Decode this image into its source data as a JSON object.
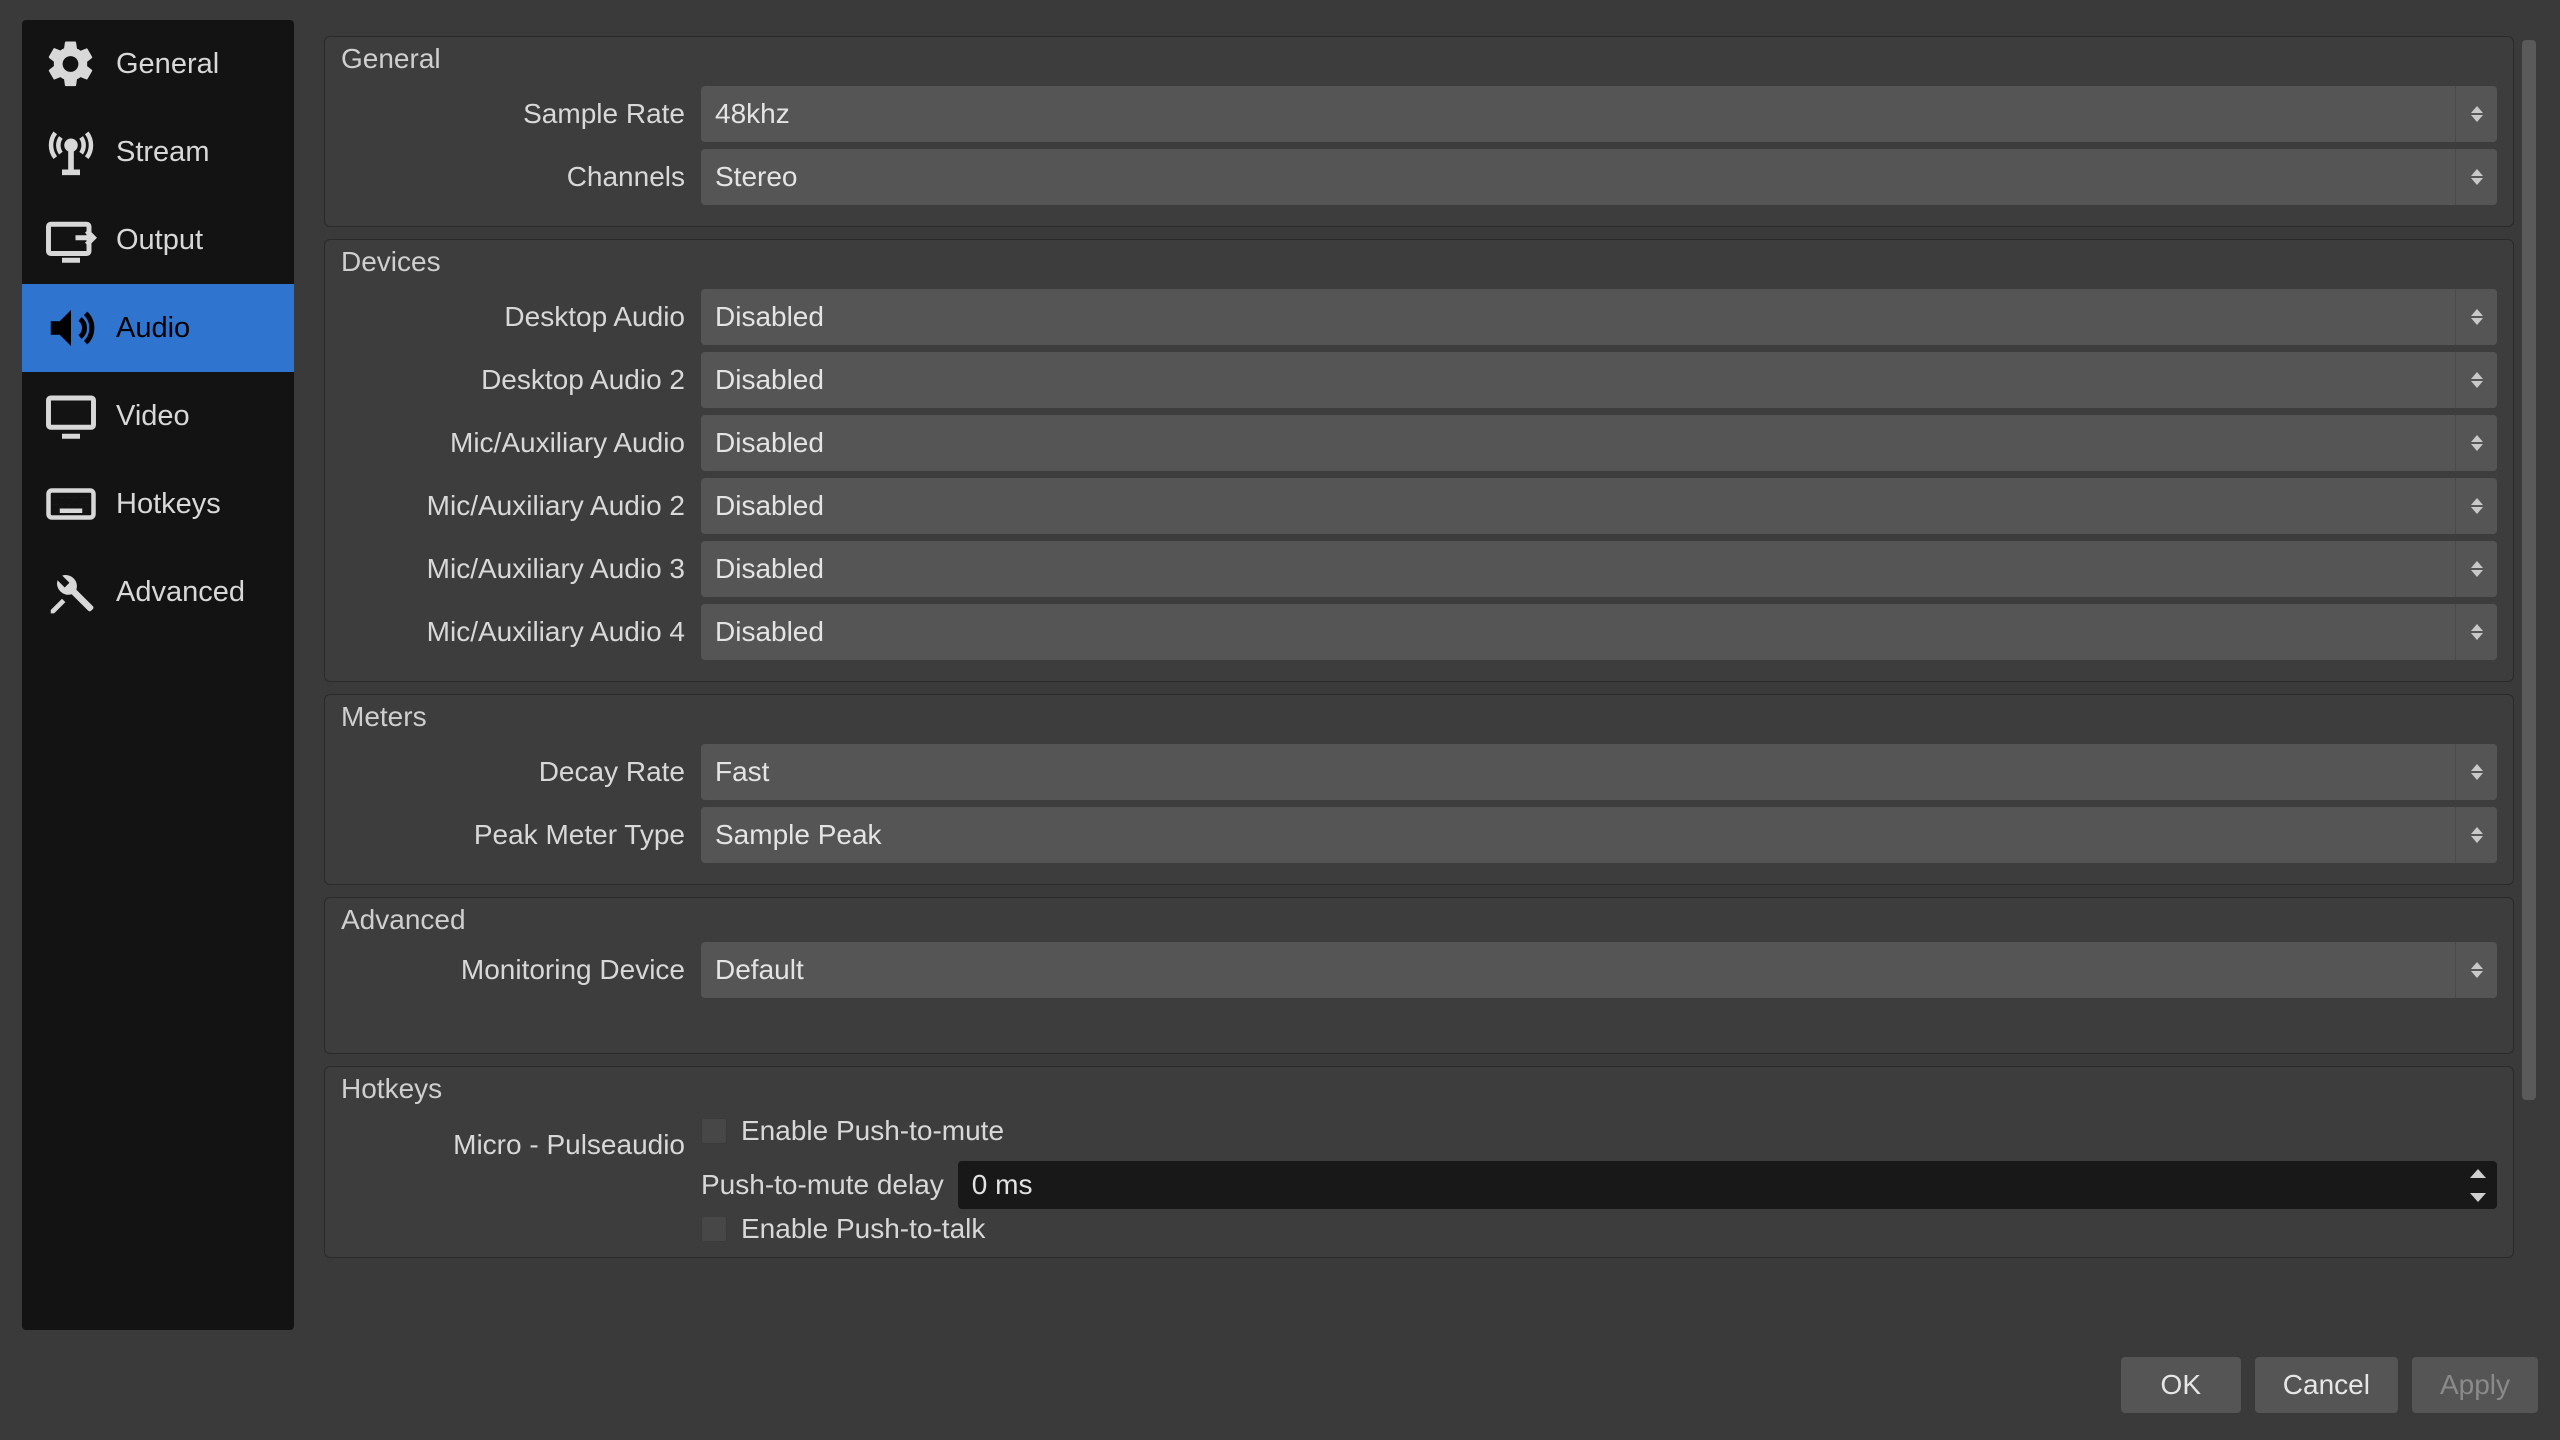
{
  "colors": {
    "app_bg": "#3a3a3a",
    "sidebar_bg": "#131313",
    "selected_bg": "#2f75d0",
    "control_bg": "#555555",
    "spinbox_bg": "#181818",
    "text": "#d8d8d8",
    "text_disabled": "#8a8a8a"
  },
  "sidebar": {
    "items": [
      {
        "label": "General",
        "icon": "gear-icon",
        "selected": false
      },
      {
        "label": "Stream",
        "icon": "antenna-icon",
        "selected": false
      },
      {
        "label": "Output",
        "icon": "output-icon",
        "selected": false
      },
      {
        "label": "Audio",
        "icon": "speaker-icon",
        "selected": true
      },
      {
        "label": "Video",
        "icon": "monitor-icon",
        "selected": false
      },
      {
        "label": "Hotkeys",
        "icon": "keyboard-icon",
        "selected": false
      },
      {
        "label": "Advanced",
        "icon": "tools-icon",
        "selected": false
      }
    ]
  },
  "groups": {
    "general": {
      "title": "General",
      "sample_rate": {
        "label": "Sample Rate",
        "value": "48khz"
      },
      "channels": {
        "label": "Channels",
        "value": "Stereo"
      }
    },
    "devices": {
      "title": "Devices",
      "rows": [
        {
          "label": "Desktop Audio",
          "value": "Disabled"
        },
        {
          "label": "Desktop Audio 2",
          "value": "Disabled"
        },
        {
          "label": "Mic/Auxiliary Audio",
          "value": "Disabled"
        },
        {
          "label": "Mic/Auxiliary Audio 2",
          "value": "Disabled"
        },
        {
          "label": "Mic/Auxiliary Audio 3",
          "value": "Disabled"
        },
        {
          "label": "Mic/Auxiliary Audio 4",
          "value": "Disabled"
        }
      ]
    },
    "meters": {
      "title": "Meters",
      "decay_rate": {
        "label": "Decay Rate",
        "value": "Fast"
      },
      "peak_meter_type": {
        "label": "Peak Meter Type",
        "value": "Sample Peak"
      }
    },
    "advanced": {
      "title": "Advanced",
      "monitoring_device": {
        "label": "Monitoring Device",
        "value": "Default"
      }
    },
    "hotkeys": {
      "title": "Hotkeys",
      "device_label": "Micro - Pulseaudio",
      "enable_ptm": {
        "label": "Enable Push-to-mute",
        "checked": false
      },
      "ptm_delay": {
        "label": "Push-to-mute delay",
        "value": "0 ms"
      },
      "enable_ptt": {
        "label": "Enable Push-to-talk",
        "checked": false
      }
    }
  },
  "footer": {
    "ok": "OK",
    "cancel": "Cancel",
    "apply": "Apply"
  }
}
